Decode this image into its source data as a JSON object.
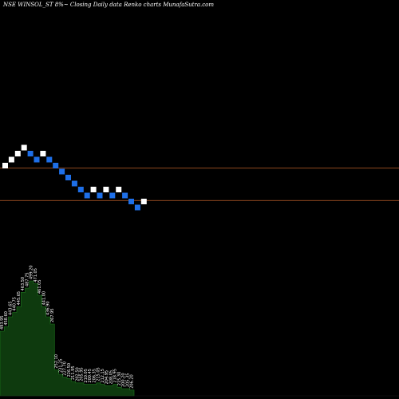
{
  "chart_data": {
    "type": "renko",
    "title": "NSE WINSOL_ST 8%~  Closing Daily data  Renko  charts MunafaSutra.com",
    "colors": {
      "background": "#000000",
      "up_brick": "#ffffff",
      "down_brick": "#1e6fe8",
      "level_line": "#c0602a",
      "volume_fill": "#0e3a0e",
      "volume_edge": "#1f7a1f",
      "label": "#ffffff"
    },
    "bricks": [
      {
        "dir": "up",
        "level": 0
      },
      {
        "dir": "up",
        "level": 1
      },
      {
        "dir": "up",
        "level": 2
      },
      {
        "dir": "up",
        "level": 3
      },
      {
        "dir": "down",
        "level": 2
      },
      {
        "dir": "down",
        "level": 1
      },
      {
        "dir": "up",
        "level": 2
      },
      {
        "dir": "down",
        "level": 1
      },
      {
        "dir": "down",
        "level": 0
      },
      {
        "dir": "down",
        "level": -1
      },
      {
        "dir": "down",
        "level": -2
      },
      {
        "dir": "down",
        "level": -3
      },
      {
        "dir": "down",
        "level": -4
      },
      {
        "dir": "down",
        "level": -5
      },
      {
        "dir": "up",
        "level": -4
      },
      {
        "dir": "down",
        "level": -5
      },
      {
        "dir": "up",
        "level": -4
      },
      {
        "dir": "down",
        "level": -5
      },
      {
        "dir": "up",
        "level": -4
      },
      {
        "dir": "down",
        "level": -5
      },
      {
        "dir": "down",
        "level": -6
      },
      {
        "dir": "down",
        "level": -7
      },
      {
        "dir": "up",
        "level": -6
      }
    ],
    "level_lines": [
      {
        "level": -0.9
      },
      {
        "level": -6.3
      }
    ],
    "volume_labels": [
      "493.95",
      "458.60",
      "443.65",
      "440.75",
      "445.65",
      "463.50",
      "487.75",
      "499.20",
      "471.05",
      "461.05",
      "441.00",
      "436.90",
      "267.95",
      "252.10",
      "231.25",
      "227.70",
      "226.50",
      "211.95",
      "202.50",
      "205.95",
      "210.05",
      "200.45",
      "206.35",
      "215.05",
      "212.15",
      "204.95",
      "208.05",
      "218.95",
      "215.30",
      "200.20",
      "205.35",
      "206.20"
    ],
    "volume": [
      0.45,
      0.48,
      0.55,
      0.58,
      0.62,
      0.72,
      0.75,
      0.8,
      0.78,
      0.7,
      0.62,
      0.55,
      0.5,
      0.18,
      0.15,
      0.13,
      0.12,
      0.1,
      0.09,
      0.09,
      0.08,
      0.08,
      0.08,
      0.09,
      0.08,
      0.07,
      0.07,
      0.08,
      0.06,
      0.05,
      0.05,
      0.04
    ]
  }
}
